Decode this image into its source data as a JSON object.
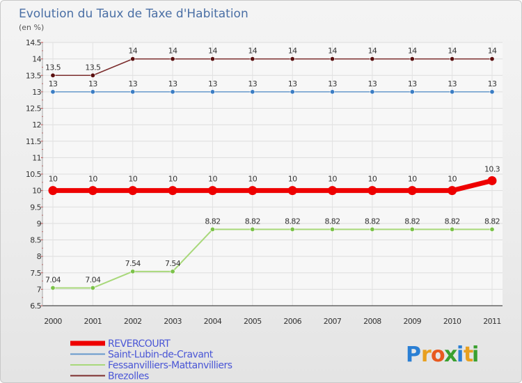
{
  "chart_data": {
    "type": "line",
    "title": "Evolution du Taux de Taxe d'Habitation",
    "ylabel": "(en %)",
    "xlabel": "",
    "ylim": [
      6.5,
      14.5
    ],
    "ytick_step": 0.5,
    "categories": [
      "2000",
      "2001",
      "2002",
      "2003",
      "2004",
      "2005",
      "2006",
      "2007",
      "2008",
      "2009",
      "2010",
      "2011"
    ],
    "series": [
      {
        "name": "Brezolles",
        "color": "#7b2c2c",
        "marker_color": "#5a1010",
        "width": 1.5,
        "values": [
          13.5,
          13.5,
          14,
          14,
          14,
          14,
          14,
          14,
          14,
          14,
          14,
          14
        ],
        "labels": [
          "13.5",
          "13.5",
          "14",
          "14",
          "14",
          "14",
          "14",
          "14",
          "14",
          "14",
          "14",
          "14"
        ]
      },
      {
        "name": "Saint-Lubin-de-Cravant",
        "color": "#6699cc",
        "marker_color": "#3b7dc4",
        "width": 1.5,
        "values": [
          13,
          13,
          13,
          13,
          13,
          13,
          13,
          13,
          13,
          13,
          13,
          13
        ],
        "labels": [
          "13",
          "13",
          "13",
          "13",
          "13",
          "13",
          "13",
          "13",
          "13",
          "13",
          "13",
          "13"
        ]
      },
      {
        "name": "REVERCOURT",
        "color": "#ee0000",
        "marker_color": "#ee0000",
        "width": 7,
        "values": [
          10,
          10,
          10,
          10,
          10,
          10,
          10,
          10,
          10,
          10,
          10,
          10.3
        ],
        "labels": [
          "10",
          "10",
          "10",
          "10",
          "10",
          "10",
          "10",
          "10",
          "10",
          "10",
          "10",
          "10.3"
        ]
      },
      {
        "name": "Fessanvilliers-Mattanvilliers",
        "color": "#a8d87a",
        "marker_color": "#7cc24a",
        "width": 2,
        "values": [
          7.04,
          7.04,
          7.54,
          7.54,
          8.82,
          8.82,
          8.82,
          8.82,
          8.82,
          8.82,
          8.82,
          8.82
        ],
        "labels": [
          "7.04",
          "7.04",
          "7.54",
          "7.54",
          "8.82",
          "8.82",
          "8.82",
          "8.82",
          "8.82",
          "8.82",
          "8.82",
          "8.82"
        ]
      }
    ],
    "legend": [
      {
        "name": "REVERCOURT",
        "color": "#ee0000",
        "width": 7
      },
      {
        "name": "Saint-Lubin-de-Cravant",
        "color": "#6699cc",
        "width": 2
      },
      {
        "name": "Fessanvilliers-Mattanvilliers",
        "color": "#a8d87a",
        "width": 2
      },
      {
        "name": "Brezolles",
        "color": "#7b2c2c",
        "width": 2
      }
    ],
    "legend_position": "bottom-left"
  },
  "logo": {
    "letters": [
      "P",
      "r",
      "o",
      "x",
      "i",
      "t",
      "i"
    ],
    "colors": [
      "#2a7fd4",
      "#e8a020",
      "#e85a20",
      "#3aa030",
      "#2a7fd4",
      "#e8a020",
      "#3aa030"
    ],
    "dot_color": "#e83020"
  }
}
